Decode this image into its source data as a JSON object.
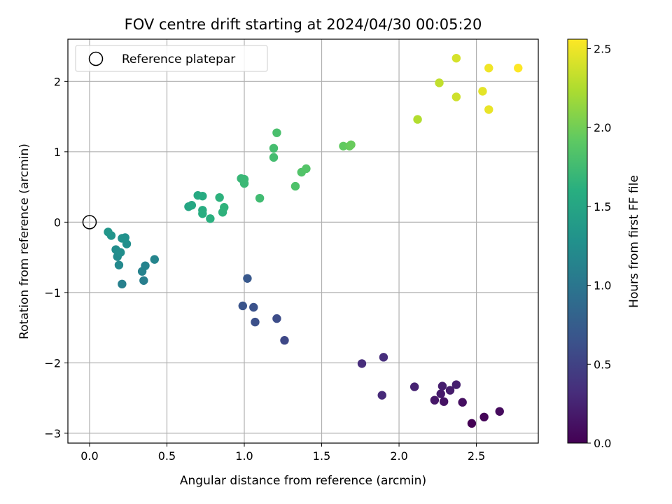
{
  "chart_data": {
    "type": "scatter",
    "title": "FOV centre drift starting at 2024/04/30 00:05:20",
    "xlabel": "Angular distance from reference (arcmin)",
    "ylabel": "Rotation from reference (arcmin)",
    "xlim": [
      -0.14,
      2.9
    ],
    "ylim": [
      -3.14,
      2.6
    ],
    "xticks": [
      0.0,
      0.5,
      1.0,
      1.5,
      2.0,
      2.5
    ],
    "xtick_labels": [
      "0.0",
      "0.5",
      "1.0",
      "1.5",
      "2.0",
      "2.5"
    ],
    "yticks": [
      -3,
      -2,
      -1,
      0,
      1,
      2
    ],
    "ytick_labels": [
      "−3",
      "−2",
      "−1",
      "0",
      "1",
      "2"
    ],
    "grid": true,
    "legend": {
      "position": "top-left",
      "entries": [
        "Reference platepar"
      ]
    },
    "reference_point": {
      "x": 0.0,
      "y": 0.0
    },
    "colorbar": {
      "label": "Hours from first FF file",
      "range": [
        0.0,
        2.56
      ],
      "ticks": [
        0.0,
        0.5,
        1.0,
        1.5,
        2.0,
        2.5
      ],
      "tick_labels": [
        "0.0",
        "0.5",
        "1.0",
        "1.5",
        "2.0",
        "2.5"
      ],
      "colormap": "viridis"
    },
    "points": [
      {
        "x": 2.47,
        "y": -2.86,
        "c": 0.0
      },
      {
        "x": 2.55,
        "y": -2.77,
        "c": 0.03
      },
      {
        "x": 2.65,
        "y": -2.69,
        "c": 0.07
      },
      {
        "x": 2.41,
        "y": -2.56,
        "c": 0.1
      },
      {
        "x": 2.29,
        "y": -2.55,
        "c": 0.13
      },
      {
        "x": 2.23,
        "y": -2.53,
        "c": 0.16
      },
      {
        "x": 2.27,
        "y": -2.44,
        "c": 0.18
      },
      {
        "x": 2.33,
        "y": -2.39,
        "c": 0.2
      },
      {
        "x": 2.28,
        "y": -2.33,
        "c": 0.21
      },
      {
        "x": 2.37,
        "y": -2.31,
        "c": 0.22
      },
      {
        "x": 2.1,
        "y": -2.34,
        "c": 0.25
      },
      {
        "x": 1.89,
        "y": -2.46,
        "c": 0.3
      },
      {
        "x": 1.76,
        "y": -2.01,
        "c": 0.32
      },
      {
        "x": 1.9,
        "y": -1.92,
        "c": 0.33
      },
      {
        "x": 1.26,
        "y": -1.68,
        "c": 0.55
      },
      {
        "x": 1.21,
        "y": -1.37,
        "c": 0.6
      },
      {
        "x": 1.07,
        "y": -1.42,
        "c": 0.62
      },
      {
        "x": 1.06,
        "y": -1.21,
        "c": 0.64
      },
      {
        "x": 0.99,
        "y": -1.19,
        "c": 0.66
      },
      {
        "x": 1.02,
        "y": -0.8,
        "c": 0.7
      },
      {
        "x": 0.35,
        "y": -0.83,
        "c": 1.08
      },
      {
        "x": 0.21,
        "y": -0.88,
        "c": 1.1
      },
      {
        "x": 0.34,
        "y": -0.7,
        "c": 1.12
      },
      {
        "x": 0.36,
        "y": -0.62,
        "c": 1.14
      },
      {
        "x": 0.42,
        "y": -0.53,
        "c": 1.16
      },
      {
        "x": 0.19,
        "y": -0.61,
        "c": 1.2
      },
      {
        "x": 0.18,
        "y": -0.49,
        "c": 1.22
      },
      {
        "x": 0.17,
        "y": -0.39,
        "c": 1.24
      },
      {
        "x": 0.2,
        "y": -0.43,
        "c": 1.25
      },
      {
        "x": 0.24,
        "y": -0.31,
        "c": 1.26
      },
      {
        "x": 0.23,
        "y": -0.22,
        "c": 1.28
      },
      {
        "x": 0.21,
        "y": -0.23,
        "c": 1.29
      },
      {
        "x": 0.14,
        "y": -0.19,
        "c": 1.31
      },
      {
        "x": 0.12,
        "y": -0.14,
        "c": 1.33
      },
      {
        "x": 0.64,
        "y": 0.22,
        "c": 1.5
      },
      {
        "x": 0.66,
        "y": 0.24,
        "c": 1.52
      },
      {
        "x": 0.7,
        "y": 0.38,
        "c": 1.55
      },
      {
        "x": 0.73,
        "y": 0.37,
        "c": 1.57
      },
      {
        "x": 0.73,
        "y": 0.17,
        "c": 1.58
      },
      {
        "x": 0.73,
        "y": 0.12,
        "c": 1.59
      },
      {
        "x": 0.78,
        "y": 0.05,
        "c": 1.61
      },
      {
        "x": 0.84,
        "y": 0.35,
        "c": 1.63
      },
      {
        "x": 0.86,
        "y": 0.14,
        "c": 1.64
      },
      {
        "x": 0.87,
        "y": 0.21,
        "c": 1.65
      },
      {
        "x": 0.98,
        "y": 0.62,
        "c": 1.7
      },
      {
        "x": 1.0,
        "y": 0.61,
        "c": 1.71
      },
      {
        "x": 1.0,
        "y": 0.55,
        "c": 1.72
      },
      {
        "x": 1.1,
        "y": 0.34,
        "c": 1.75
      },
      {
        "x": 1.19,
        "y": 0.92,
        "c": 1.77
      },
      {
        "x": 1.19,
        "y": 1.05,
        "c": 1.78
      },
      {
        "x": 1.21,
        "y": 1.27,
        "c": 1.8
      },
      {
        "x": 1.33,
        "y": 0.51,
        "c": 1.83
      },
      {
        "x": 1.37,
        "y": 0.71,
        "c": 1.85
      },
      {
        "x": 1.4,
        "y": 0.76,
        "c": 1.86
      },
      {
        "x": 1.64,
        "y": 1.08,
        "c": 1.93
      },
      {
        "x": 1.68,
        "y": 1.08,
        "c": 1.95
      },
      {
        "x": 1.69,
        "y": 1.1,
        "c": 1.96
      },
      {
        "x": 2.12,
        "y": 1.46,
        "c": 2.26
      },
      {
        "x": 2.26,
        "y": 1.98,
        "c": 2.32
      },
      {
        "x": 2.37,
        "y": 1.78,
        "c": 2.37
      },
      {
        "x": 2.37,
        "y": 2.33,
        "c": 2.4
      },
      {
        "x": 2.54,
        "y": 1.86,
        "c": 2.46
      },
      {
        "x": 2.58,
        "y": 1.6,
        "c": 2.48
      },
      {
        "x": 2.58,
        "y": 2.19,
        "c": 2.51
      },
      {
        "x": 2.77,
        "y": 2.19,
        "c": 2.56
      }
    ]
  }
}
